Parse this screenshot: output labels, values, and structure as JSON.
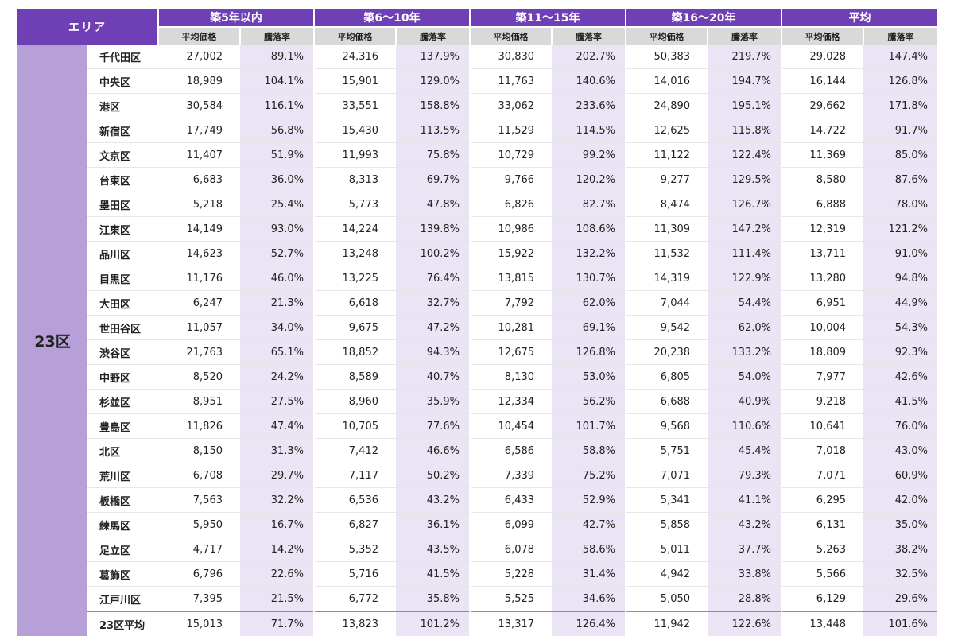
{
  "header": {
    "area_label": "エリア",
    "groups": [
      "築5年以内",
      "築6～10年",
      "築11～15年",
      "築16～20年",
      "平均"
    ],
    "price_label": "平均価格",
    "rate_label": "騰落率"
  },
  "region": "23区",
  "colors": {
    "header_purple": "#6f3fb5",
    "area_lavender": "#b7a0d8",
    "rate_column": "#ebe4f5",
    "subheader_gray": "#d9d9d9"
  },
  "rows": [
    {
      "ward": "千代田区",
      "cells": [
        "27,002",
        "89.1%",
        "24,316",
        "137.9%",
        "30,830",
        "202.7%",
        "50,383",
        "219.7%",
        "29,028",
        "147.4%"
      ]
    },
    {
      "ward": "中央区",
      "cells": [
        "18,989",
        "104.1%",
        "15,901",
        "129.0%",
        "11,763",
        "140.6%",
        "14,016",
        "194.7%",
        "16,144",
        "126.8%"
      ]
    },
    {
      "ward": "港区",
      "cells": [
        "30,584",
        "116.1%",
        "33,551",
        "158.8%",
        "33,062",
        "233.6%",
        "24,890",
        "195.1%",
        "29,662",
        "171.8%"
      ]
    },
    {
      "ward": "新宿区",
      "cells": [
        "17,749",
        "56.8%",
        "15,430",
        "113.5%",
        "11,529",
        "114.5%",
        "12,625",
        "115.8%",
        "14,722",
        "91.7%"
      ]
    },
    {
      "ward": "文京区",
      "cells": [
        "11,407",
        "51.9%",
        "11,993",
        "75.8%",
        "10,729",
        "99.2%",
        "11,122",
        "122.4%",
        "11,369",
        "85.0%"
      ]
    },
    {
      "ward": "台東区",
      "cells": [
        "6,683",
        "36.0%",
        "8,313",
        "69.7%",
        "9,766",
        "120.2%",
        "9,277",
        "129.5%",
        "8,580",
        "87.6%"
      ]
    },
    {
      "ward": "墨田区",
      "cells": [
        "5,218",
        "25.4%",
        "5,773",
        "47.8%",
        "6,826",
        "82.7%",
        "8,474",
        "126.7%",
        "6,888",
        "78.0%"
      ]
    },
    {
      "ward": "江東区",
      "cells": [
        "14,149",
        "93.0%",
        "14,224",
        "139.8%",
        "10,986",
        "108.6%",
        "11,309",
        "147.2%",
        "12,319",
        "121.2%"
      ]
    },
    {
      "ward": "品川区",
      "cells": [
        "14,623",
        "52.7%",
        "13,248",
        "100.2%",
        "15,922",
        "132.2%",
        "11,532",
        "111.4%",
        "13,711",
        "91.0%"
      ]
    },
    {
      "ward": "目黒区",
      "cells": [
        "11,176",
        "46.0%",
        "13,225",
        "76.4%",
        "13,815",
        "130.7%",
        "14,319",
        "122.9%",
        "13,280",
        "94.8%"
      ]
    },
    {
      "ward": "大田区",
      "cells": [
        "6,247",
        "21.3%",
        "6,618",
        "32.7%",
        "7,792",
        "62.0%",
        "7,044",
        "54.4%",
        "6,951",
        "44.9%"
      ]
    },
    {
      "ward": "世田谷区",
      "cells": [
        "11,057",
        "34.0%",
        "9,675",
        "47.2%",
        "10,281",
        "69.1%",
        "9,542",
        "62.0%",
        "10,004",
        "54.3%"
      ]
    },
    {
      "ward": "渋谷区",
      "cells": [
        "21,763",
        "65.1%",
        "18,852",
        "94.3%",
        "12,675",
        "126.8%",
        "20,238",
        "133.2%",
        "18,809",
        "92.3%"
      ]
    },
    {
      "ward": "中野区",
      "cells": [
        "8,520",
        "24.2%",
        "8,589",
        "40.7%",
        "8,130",
        "53.0%",
        "6,805",
        "54.0%",
        "7,977",
        "42.6%"
      ]
    },
    {
      "ward": "杉並区",
      "cells": [
        "8,951",
        "27.5%",
        "8,960",
        "35.9%",
        "12,334",
        "56.2%",
        "6,688",
        "40.9%",
        "9,218",
        "41.5%"
      ]
    },
    {
      "ward": "豊島区",
      "cells": [
        "11,826",
        "47.4%",
        "10,705",
        "77.6%",
        "10,454",
        "101.7%",
        "9,568",
        "110.6%",
        "10,641",
        "76.0%"
      ]
    },
    {
      "ward": "北区",
      "cells": [
        "8,150",
        "31.3%",
        "7,412",
        "46.6%",
        "6,586",
        "58.8%",
        "5,751",
        "45.4%",
        "7,018",
        "43.0%"
      ]
    },
    {
      "ward": "荒川区",
      "cells": [
        "6,708",
        "29.7%",
        "7,117",
        "50.2%",
        "7,339",
        "75.2%",
        "7,071",
        "79.3%",
        "7,071",
        "60.9%"
      ]
    },
    {
      "ward": "板橋区",
      "cells": [
        "7,563",
        "32.2%",
        "6,536",
        "43.2%",
        "6,433",
        "52.9%",
        "5,341",
        "41.1%",
        "6,295",
        "42.0%"
      ]
    },
    {
      "ward": "練馬区",
      "cells": [
        "5,950",
        "16.7%",
        "6,827",
        "36.1%",
        "6,099",
        "42.7%",
        "5,858",
        "43.2%",
        "6,131",
        "35.0%"
      ]
    },
    {
      "ward": "足立区",
      "cells": [
        "4,717",
        "14.2%",
        "5,352",
        "43.5%",
        "6,078",
        "58.6%",
        "5,011",
        "37.7%",
        "5,263",
        "38.2%"
      ]
    },
    {
      "ward": "葛飾区",
      "cells": [
        "6,796",
        "22.6%",
        "5,716",
        "41.5%",
        "5,228",
        "31.4%",
        "4,942",
        "33.8%",
        "5,566",
        "32.5%"
      ]
    },
    {
      "ward": "江戸川区",
      "cells": [
        "7,395",
        "21.5%",
        "6,772",
        "35.8%",
        "5,525",
        "34.6%",
        "5,050",
        "28.8%",
        "6,129",
        "29.6%"
      ]
    }
  ],
  "average_row": {
    "ward": "23区平均",
    "cells": [
      "15,013",
      "71.7%",
      "13,823",
      "101.2%",
      "13,317",
      "126.4%",
      "11,942",
      "122.6%",
      "13,448",
      "101.6%"
    ]
  }
}
